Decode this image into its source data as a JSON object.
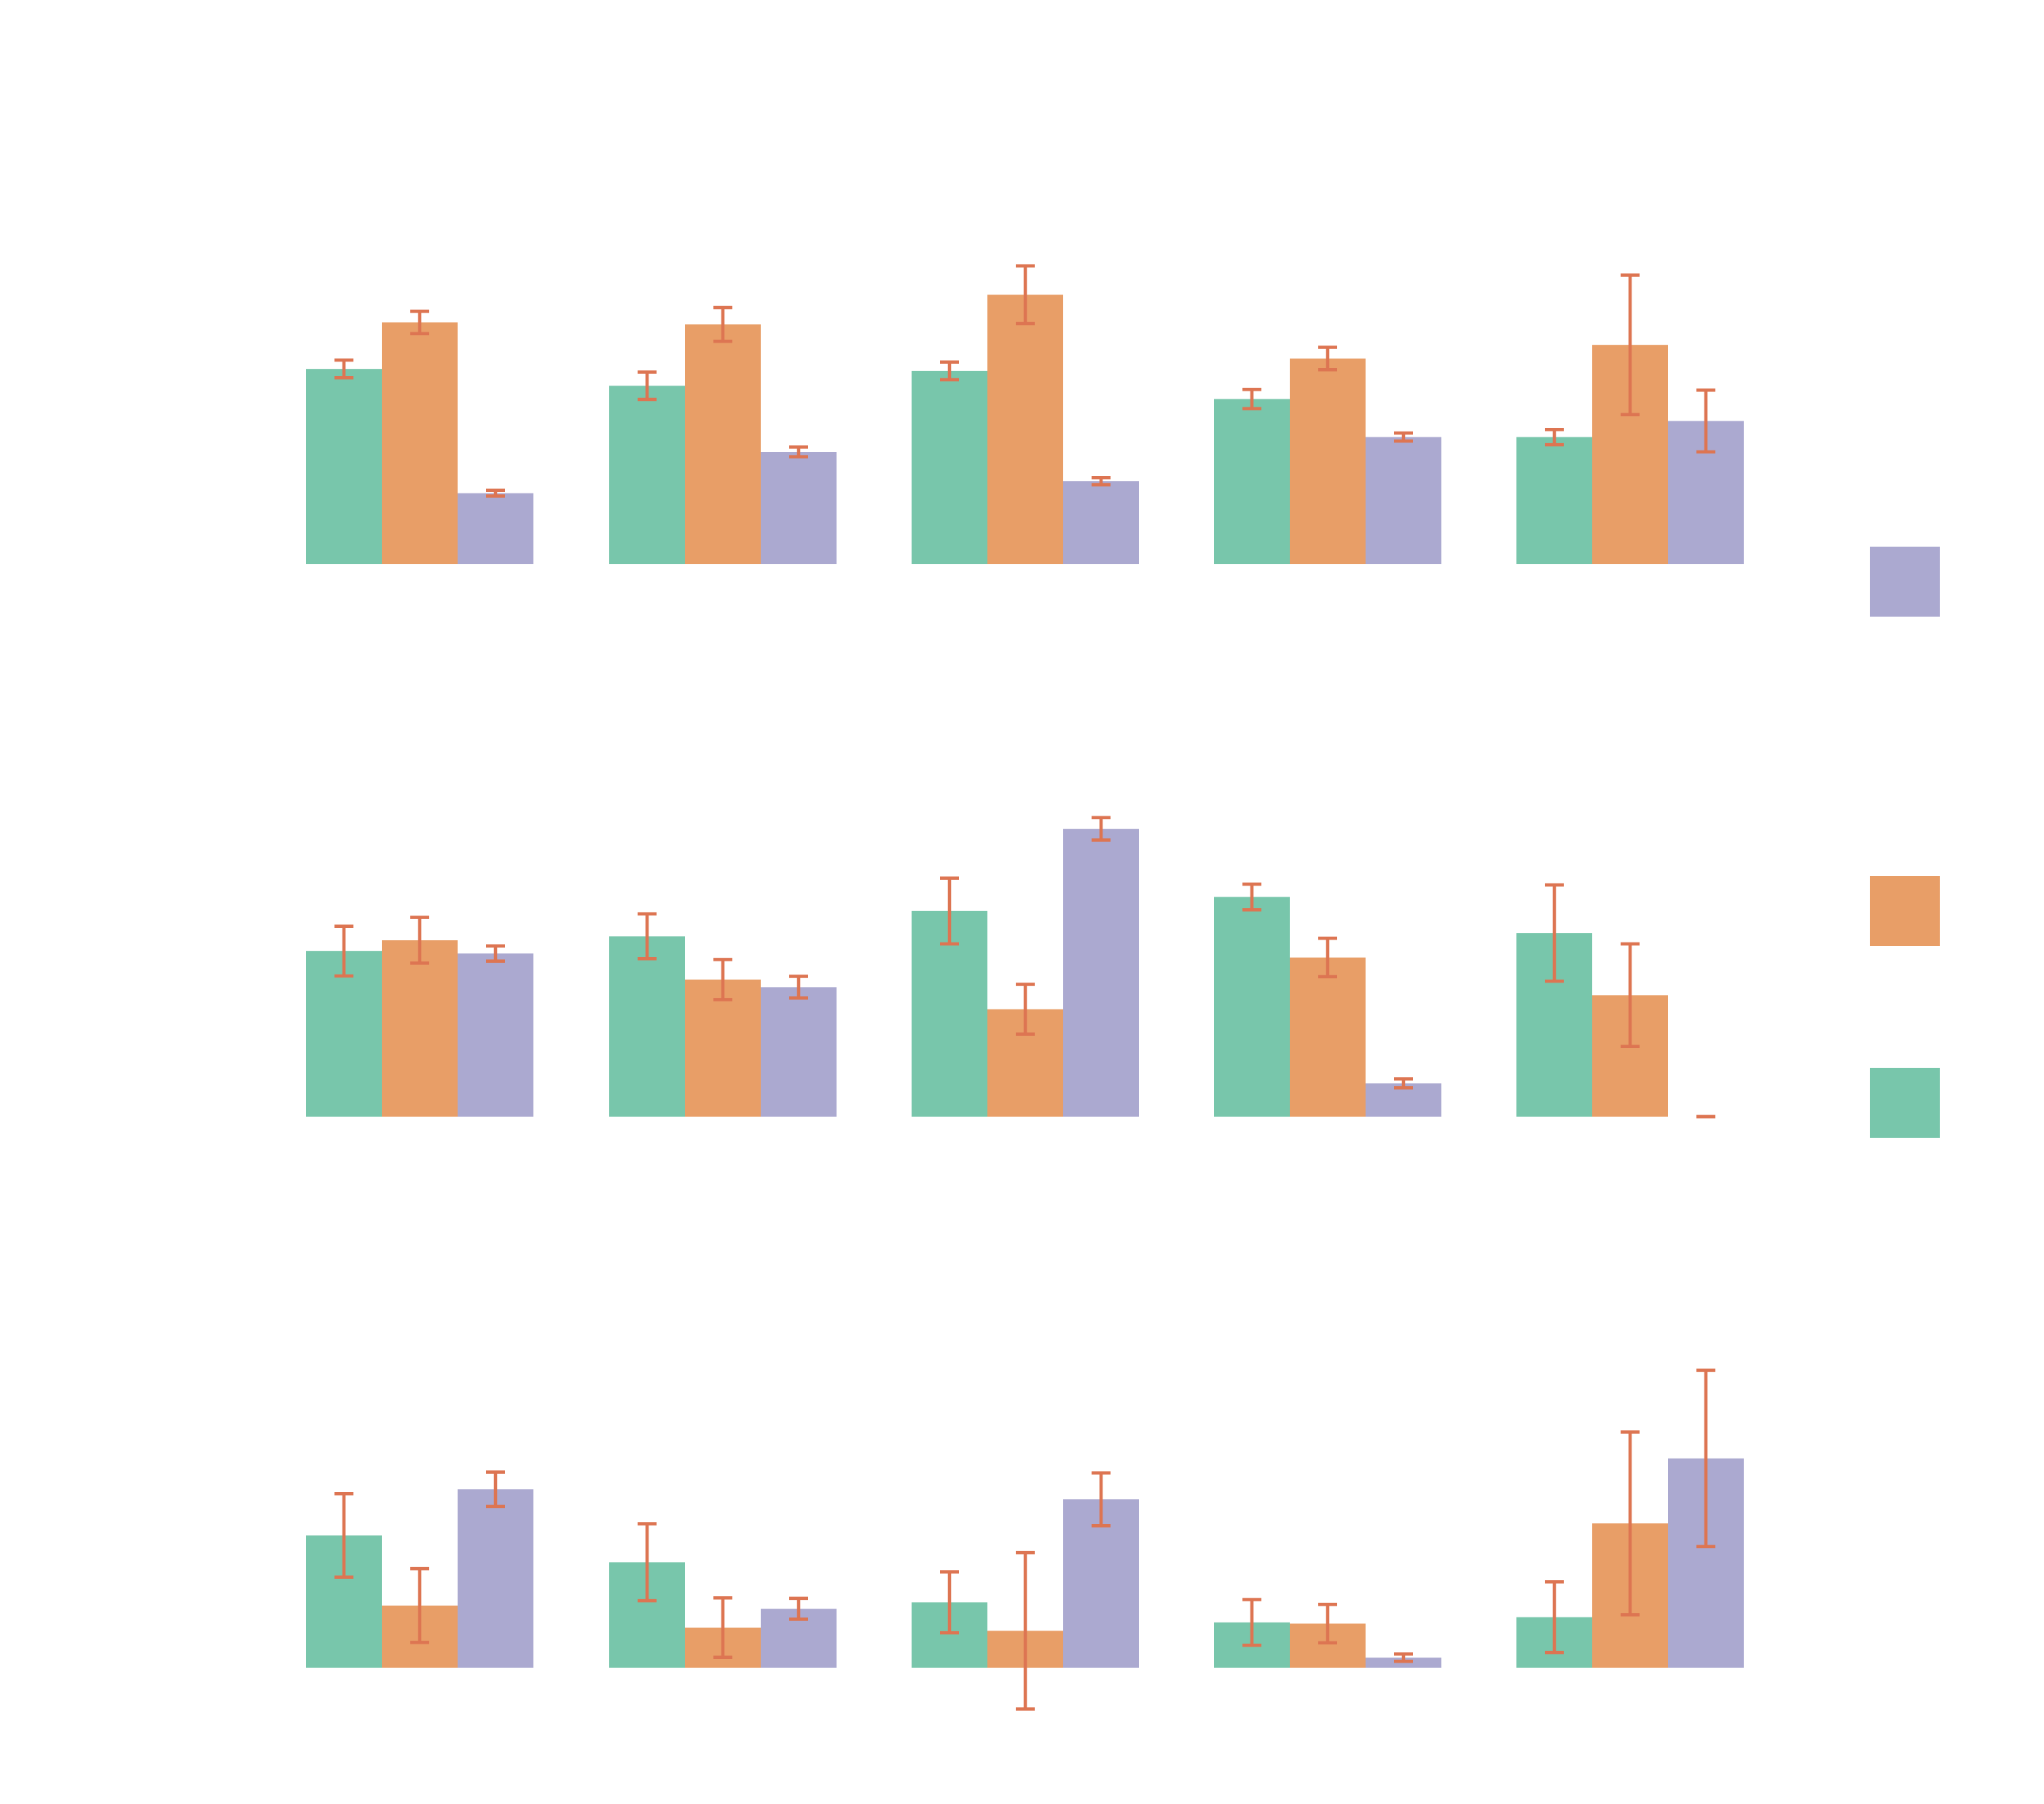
{
  "chart_data": {
    "type": "bar",
    "colors": [
      "#78c6ab",
      "#e89e67",
      "#aba9d0"
    ],
    "error_color": "#dd7552",
    "legend": {
      "position": "right",
      "swatch_colors_top_to_bottom": [
        "#aba9d0",
        "#e89e67",
        "#78c6ab"
      ]
    },
    "grid": false,
    "panels": [
      {
        "ylim": [
          0,
          10
        ],
        "groups": [
          {
            "values": [
              4.87,
              6.03,
              1.77
            ],
            "errors": [
              0.22,
              0.28,
              0.07
            ]
          },
          {
            "values": [
              4.45,
              5.98,
              2.8
            ],
            "errors": [
              0.34,
              0.42,
              0.12
            ]
          },
          {
            "values": [
              4.82,
              6.72,
              2.07
            ],
            "errors": [
              0.22,
              0.72,
              0.09
            ]
          },
          {
            "values": [
              4.12,
              5.13,
              3.17
            ],
            "errors": [
              0.24,
              0.28,
              0.1
            ]
          },
          {
            "values": [
              3.17,
              5.47,
              3.57
            ],
            "errors": [
              0.19,
              1.74,
              0.77
            ]
          }
        ]
      },
      {
        "ylim": [
          0,
          10
        ],
        "groups": [
          {
            "values": [
              4.13,
              4.4,
              4.07
            ],
            "errors": [
              0.62,
              0.57,
              0.19
            ]
          },
          {
            "values": [
              4.5,
              3.42,
              3.23
            ],
            "errors": [
              0.56,
              0.5,
              0.27
            ]
          },
          {
            "values": [
              5.13,
              2.68,
              7.18
            ],
            "errors": [
              0.82,
              0.62,
              0.28
            ]
          },
          {
            "values": [
              5.48,
              3.97,
              0.83
            ],
            "errors": [
              0.32,
              0.48,
              0.11
            ]
          },
          {
            "values": [
              4.58,
              3.03,
              0.0
            ],
            "errors": [
              1.2,
              1.28,
              0.0
            ]
          }
        ]
      },
      {
        "ylim": [
          0,
          10
        ],
        "groups": [
          {
            "values": [
              3.3,
              1.55,
              4.45
            ],
            "errors": [
              1.04,
              0.92,
              0.43
            ]
          },
          {
            "values": [
              2.63,
              1.0,
              1.47
            ],
            "errors": [
              0.96,
              0.74,
              0.26
            ]
          },
          {
            "values": [
              1.63,
              0.92,
              4.2
            ],
            "errors": [
              0.76,
              1.95,
              0.66
            ]
          },
          {
            "values": [
              1.13,
              1.1,
              0.25
            ],
            "errors": [
              0.57,
              0.48,
              0.09
            ]
          },
          {
            "values": [
              1.26,
              3.6,
              5.22
            ],
            "errors": [
              0.88,
              2.28,
              2.2
            ]
          }
        ]
      }
    ]
  }
}
